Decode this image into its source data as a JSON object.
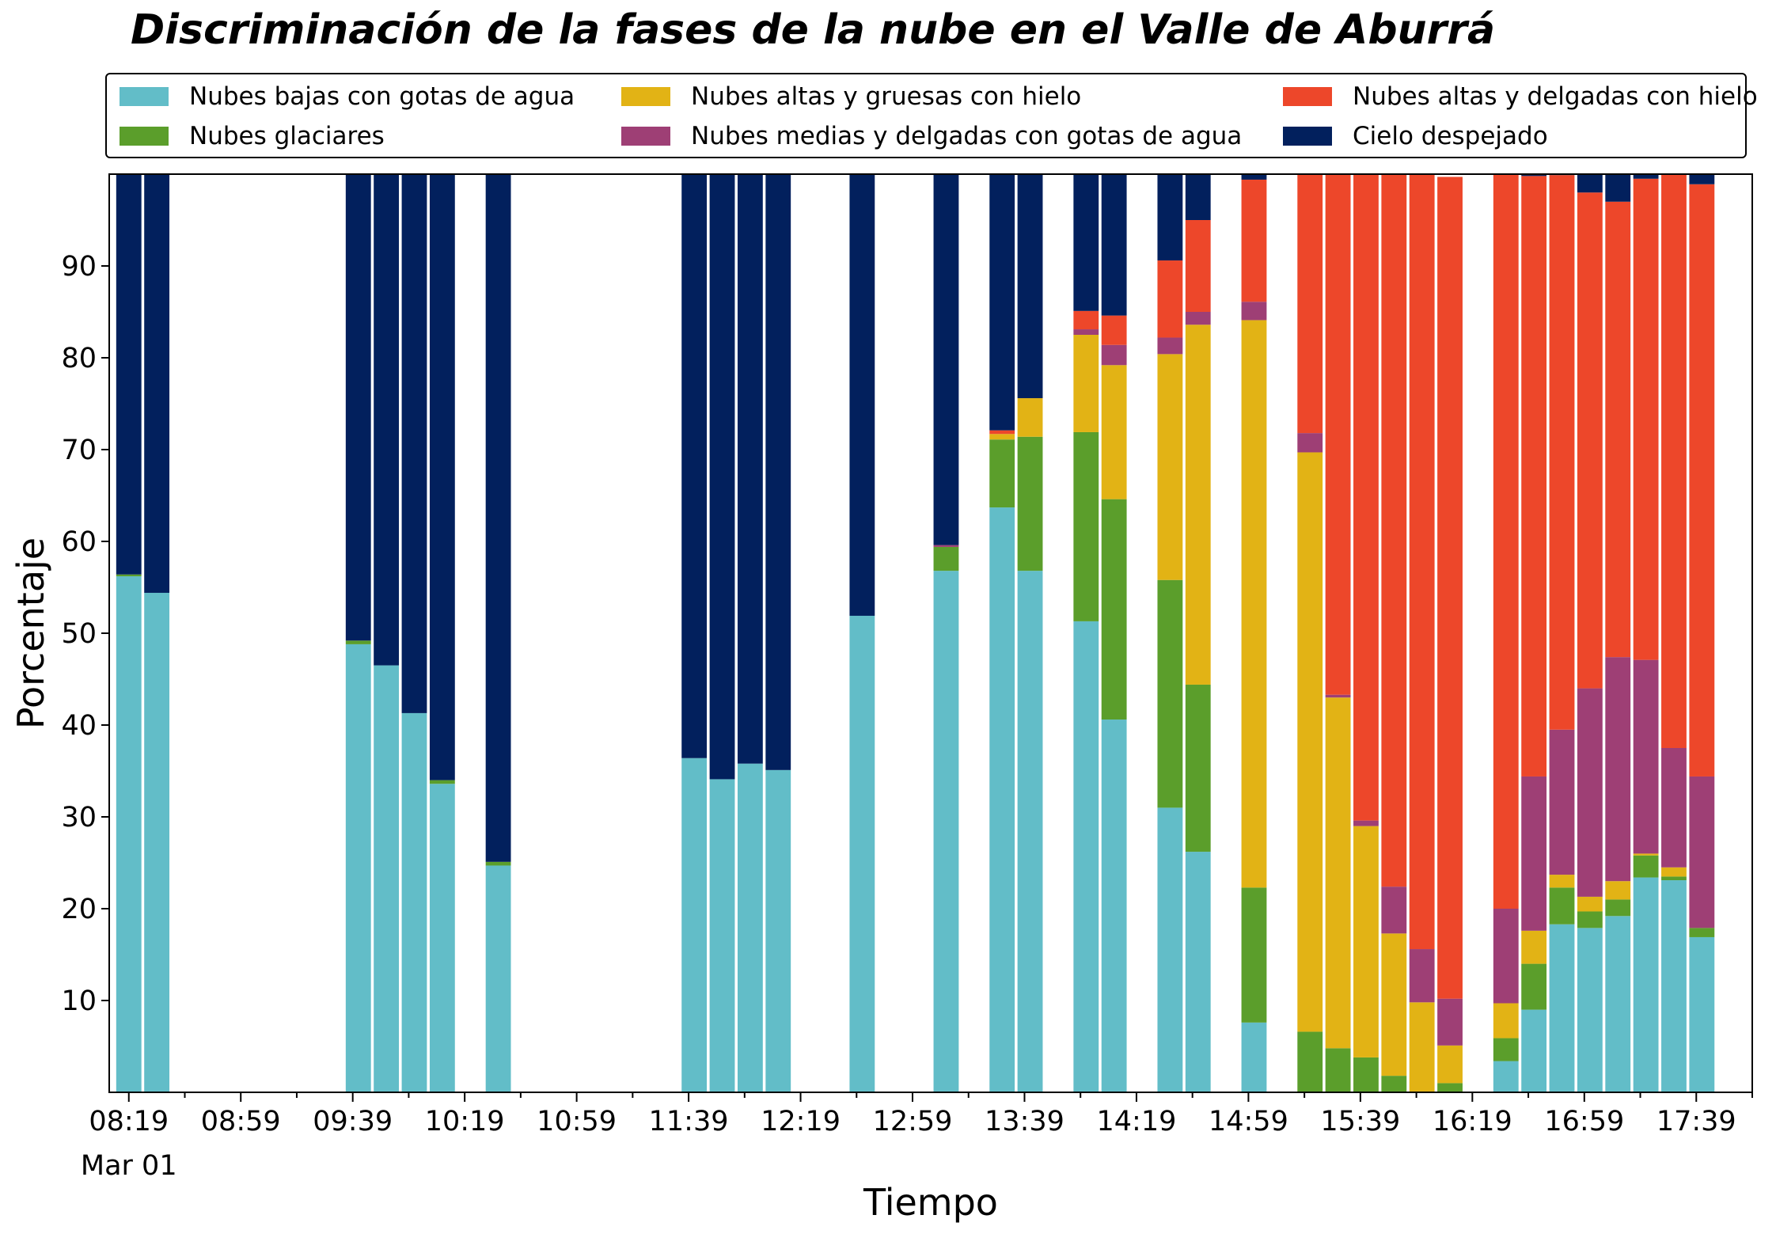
{
  "chart_data": {
    "type": "bar",
    "stacked": true,
    "title": "Discriminación de la fases de la nube en el Valle de Aburrá",
    "xlabel": "Tiempo",
    "ylabel": "Porcentaje",
    "ylim": [
      0,
      100
    ],
    "yticks": [
      10,
      20,
      30,
      40,
      50,
      60,
      70,
      80,
      90
    ],
    "grid": false,
    "legend_position": "top",
    "x_date_label": "Mar 01",
    "x_tick_labels": [
      "08:19",
      "08:59",
      "09:39",
      "10:19",
      "10:59",
      "11:39",
      "12:19",
      "12:59",
      "13:39",
      "14:19",
      "14:59",
      "15:39",
      "16:19",
      "16:59",
      "17:39"
    ],
    "x_tick_minutes": [
      499,
      539,
      579,
      619,
      659,
      699,
      739,
      779,
      819,
      859,
      899,
      939,
      979,
      1019,
      1059
    ],
    "x_minor_tick_minutes": [
      519,
      559,
      599,
      639,
      679,
      719,
      759,
      799,
      839,
      879,
      919,
      959,
      999,
      1039,
      1079
    ],
    "xlim_minutes": [
      492,
      1079
    ],
    "bar_width_minutes": 9,
    "x_minutes": [
      499,
      509,
      581,
      591,
      601,
      611,
      631,
      701,
      711,
      721,
      731,
      761,
      791,
      811,
      821,
      841,
      851,
      871,
      881,
      901,
      921,
      931,
      941,
      951,
      961,
      971,
      991,
      1001,
      1011,
      1021,
      1031,
      1041,
      1051,
      1061
    ],
    "series": [
      {
        "name": "Nubes bajas con gotas de agua",
        "color": "#62bdc8",
        "values": [
          56.2,
          54.4,
          48.8,
          46.5,
          41.3,
          33.6,
          24.7,
          36.4,
          34.1,
          35.8,
          35.1,
          51.9,
          56.8,
          63.7,
          56.8,
          51.3,
          40.6,
          31.0,
          26.2,
          7.6,
          0,
          0,
          0,
          0,
          0,
          0,
          3.4,
          9.0,
          18.3,
          17.9,
          19.2,
          23.4,
          23.1,
          16.9
        ]
      },
      {
        "name": "Nubes glaciares",
        "color": "#5b9e2b",
        "values": [
          0.2,
          0,
          0.4,
          0,
          0,
          0.4,
          0.4,
          0,
          0,
          0,
          0,
          0,
          2.6,
          7.4,
          14.6,
          20.6,
          24.0,
          24.8,
          18.2,
          14.7,
          6.6,
          4.8,
          3.8,
          1.8,
          0,
          1.0,
          2.5,
          5.0,
          4.0,
          1.8,
          1.8,
          2.4,
          0.4,
          1.0
        ]
      },
      {
        "name": "Nubes altas y gruesas con hielo",
        "color": "#e2b315",
        "values": [
          0,
          0,
          0,
          0,
          0,
          0,
          0,
          0,
          0,
          0,
          0,
          0,
          0,
          0.6,
          4.2,
          10.6,
          14.6,
          24.6,
          39.2,
          61.8,
          63.1,
          38.2,
          25.2,
          15.5,
          9.8,
          4.1,
          3.8,
          3.6,
          1.4,
          1.6,
          2.0,
          0.2,
          1.0,
          0
        ]
      },
      {
        "name": "Nubes medias y delgadas con gotas de agua",
        "color": "#9e3f75",
        "values": [
          0,
          0,
          0,
          0,
          0,
          0,
          0,
          0,
          0,
          0,
          0,
          0,
          0.2,
          0,
          0,
          0.6,
          2.2,
          1.8,
          1.4,
          2.0,
          2.1,
          0.3,
          0.6,
          5.1,
          5.8,
          5.1,
          10.3,
          16.8,
          15.8,
          22.7,
          24.4,
          21.1,
          13.0,
          16.5
        ]
      },
      {
        "name": "Nubes altas y delgadas con hielo",
        "color": "#ed472a",
        "values": [
          0,
          0,
          0,
          0,
          0,
          0,
          0,
          0,
          0,
          0,
          0,
          0,
          0,
          0.4,
          0,
          2.0,
          3.2,
          8.4,
          10.0,
          13.3,
          28.2,
          56.7,
          70.4,
          77.6,
          84.4,
          89.5,
          80.0,
          65.4,
          60.4,
          54.0,
          49.6,
          52.4,
          62.5,
          64.5
        ]
      },
      {
        "name": "Cielo despejado",
        "color": "#02205d",
        "values": [
          43.6,
          45.6,
          50.8,
          53.5,
          58.7,
          66.0,
          74.9,
          63.6,
          65.9,
          64.2,
          64.9,
          48.1,
          40.4,
          27.9,
          24.4,
          14.9,
          15.4,
          9.4,
          5.0,
          0.6,
          0,
          0,
          0,
          0,
          0,
          0,
          0,
          0.2,
          0.1,
          2.0,
          3.0,
          0.5,
          0,
          1.1
        ]
      }
    ]
  }
}
